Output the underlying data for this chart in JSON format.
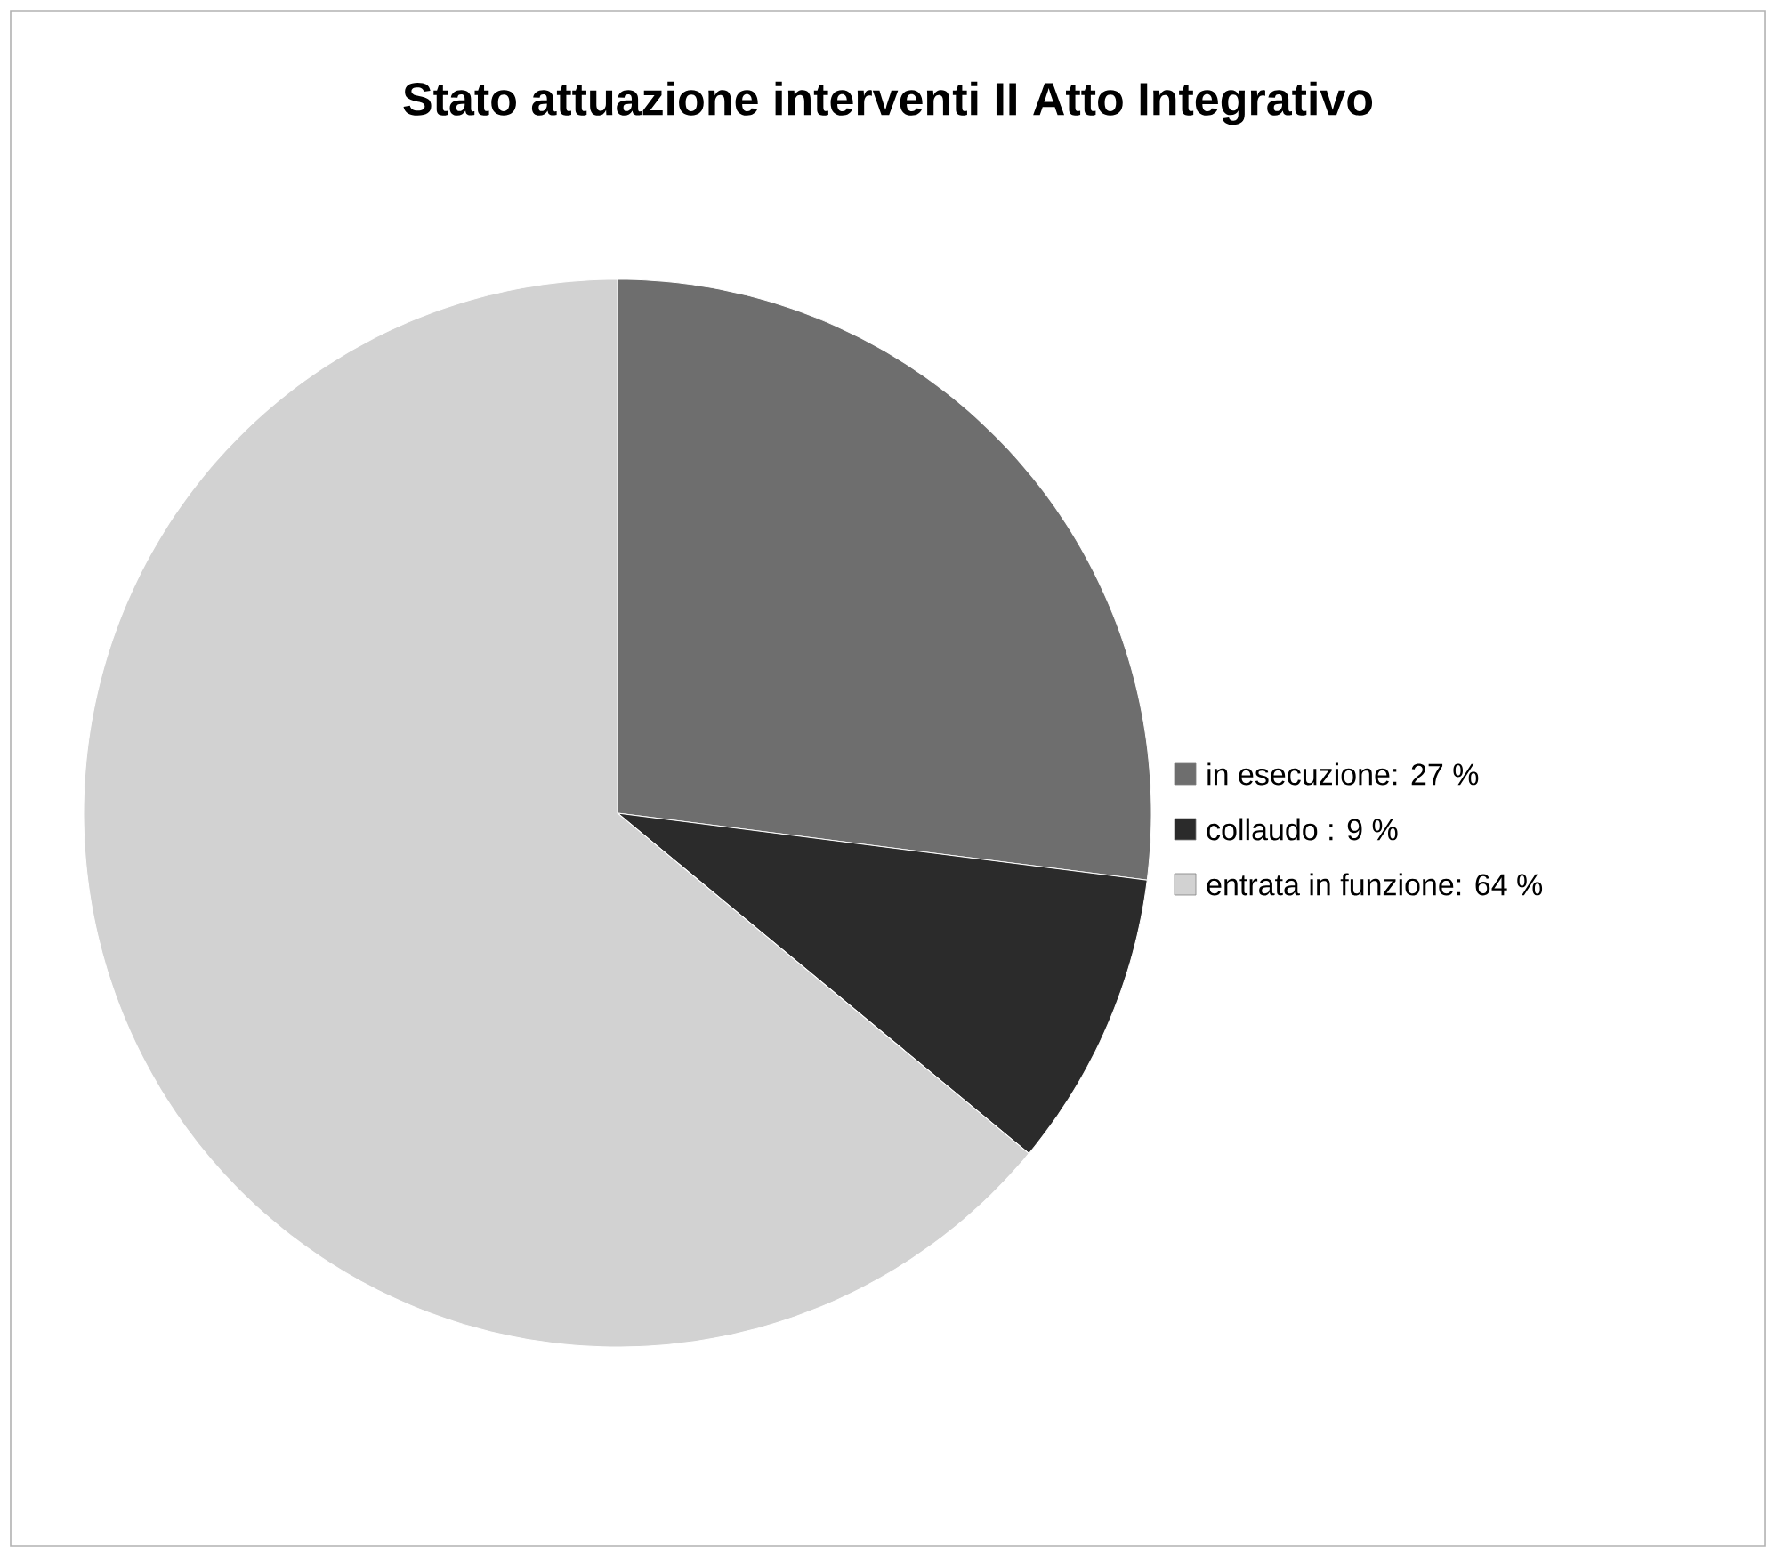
{
  "chart_data": {
    "type": "pie",
    "title": "Stato attuazione interventi II Atto Integrativo",
    "categories": [
      "in esecuzione: 27 %",
      "collaudo : 9 %",
      "entrata in funzione: 64 %"
    ],
    "values": [
      27,
      9,
      64
    ],
    "colors": [
      "#6e6e6e",
      "#2b2b2b",
      "#d2d2d2"
    ],
    "legend": "right"
  }
}
